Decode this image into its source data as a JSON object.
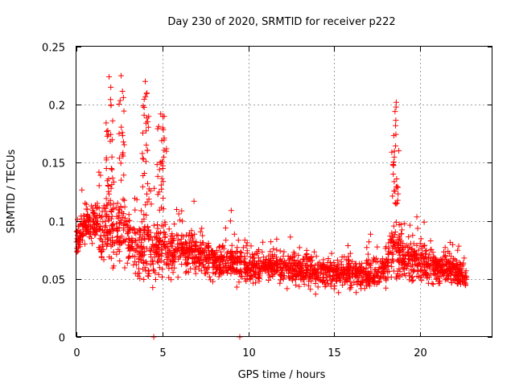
{
  "chart_data": {
    "type": "scatter",
    "title": "Day 230 of 2020, SRMTID for receiver p222",
    "xlabel": "GPS time / hours",
    "ylabel": "SRMTID / TECUs",
    "xlim": [
      0,
      24.2
    ],
    "ylim": [
      0,
      0.25
    ],
    "xticks": [
      0,
      5,
      10,
      15,
      20
    ],
    "xtick_labels": [
      "0",
      "5",
      "10",
      "15",
      "20"
    ],
    "yticks": [
      0,
      0.05,
      0.1,
      0.15,
      0.2,
      0.25
    ],
    "ytick_labels": [
      "0",
      "0.05",
      "0.1",
      "0.15",
      "0.2",
      "0.25"
    ],
    "grid": true,
    "marker": "+",
    "series": [
      {
        "name": "SRMTID",
        "color": "#ff0000",
        "x_range": [
          0,
          22.7
        ],
        "point_count": 2200,
        "envelope_x": [
          0,
          0.5,
          1,
          1.5,
          2,
          2.5,
          3,
          3.5,
          4,
          4.5,
          5,
          5.5,
          6,
          7,
          8,
          9,
          10,
          11,
          12,
          13,
          14,
          15,
          16,
          17,
          18,
          18.5,
          19,
          20,
          21,
          22,
          22.7
        ],
        "envelope_mean": [
          0.085,
          0.095,
          0.1,
          0.09,
          0.09,
          0.095,
          0.085,
          0.075,
          0.08,
          0.07,
          0.08,
          0.07,
          0.075,
          0.07,
          0.065,
          0.065,
          0.06,
          0.06,
          0.06,
          0.058,
          0.055,
          0.055,
          0.055,
          0.052,
          0.06,
          0.075,
          0.065,
          0.065,
          0.06,
          0.058,
          0.05
        ],
        "envelope_spread": [
          0.02,
          0.02,
          0.025,
          0.04,
          0.05,
          0.05,
          0.045,
          0.035,
          0.045,
          0.04,
          0.045,
          0.035,
          0.03,
          0.025,
          0.022,
          0.022,
          0.02,
          0.02,
          0.02,
          0.02,
          0.02,
          0.02,
          0.02,
          0.02,
          0.025,
          0.045,
          0.03,
          0.025,
          0.022,
          0.02,
          0.015
        ],
        "peaks": [
          {
            "x": 1.9,
            "y": 0.224
          },
          {
            "x": 2.0,
            "y": 0.215
          },
          {
            "x": 2.6,
            "y": 0.225
          },
          {
            "x": 4.0,
            "y": 0.22
          },
          {
            "x": 4.1,
            "y": 0.21
          },
          {
            "x": 4.9,
            "y": 0.192
          },
          {
            "x": 5.1,
            "y": 0.19
          },
          {
            "x": 18.6,
            "y": 0.202
          },
          {
            "x": 18.5,
            "y": 0.16
          }
        ],
        "outliers_at_zero": [
          4.5,
          9.5
        ]
      }
    ]
  }
}
